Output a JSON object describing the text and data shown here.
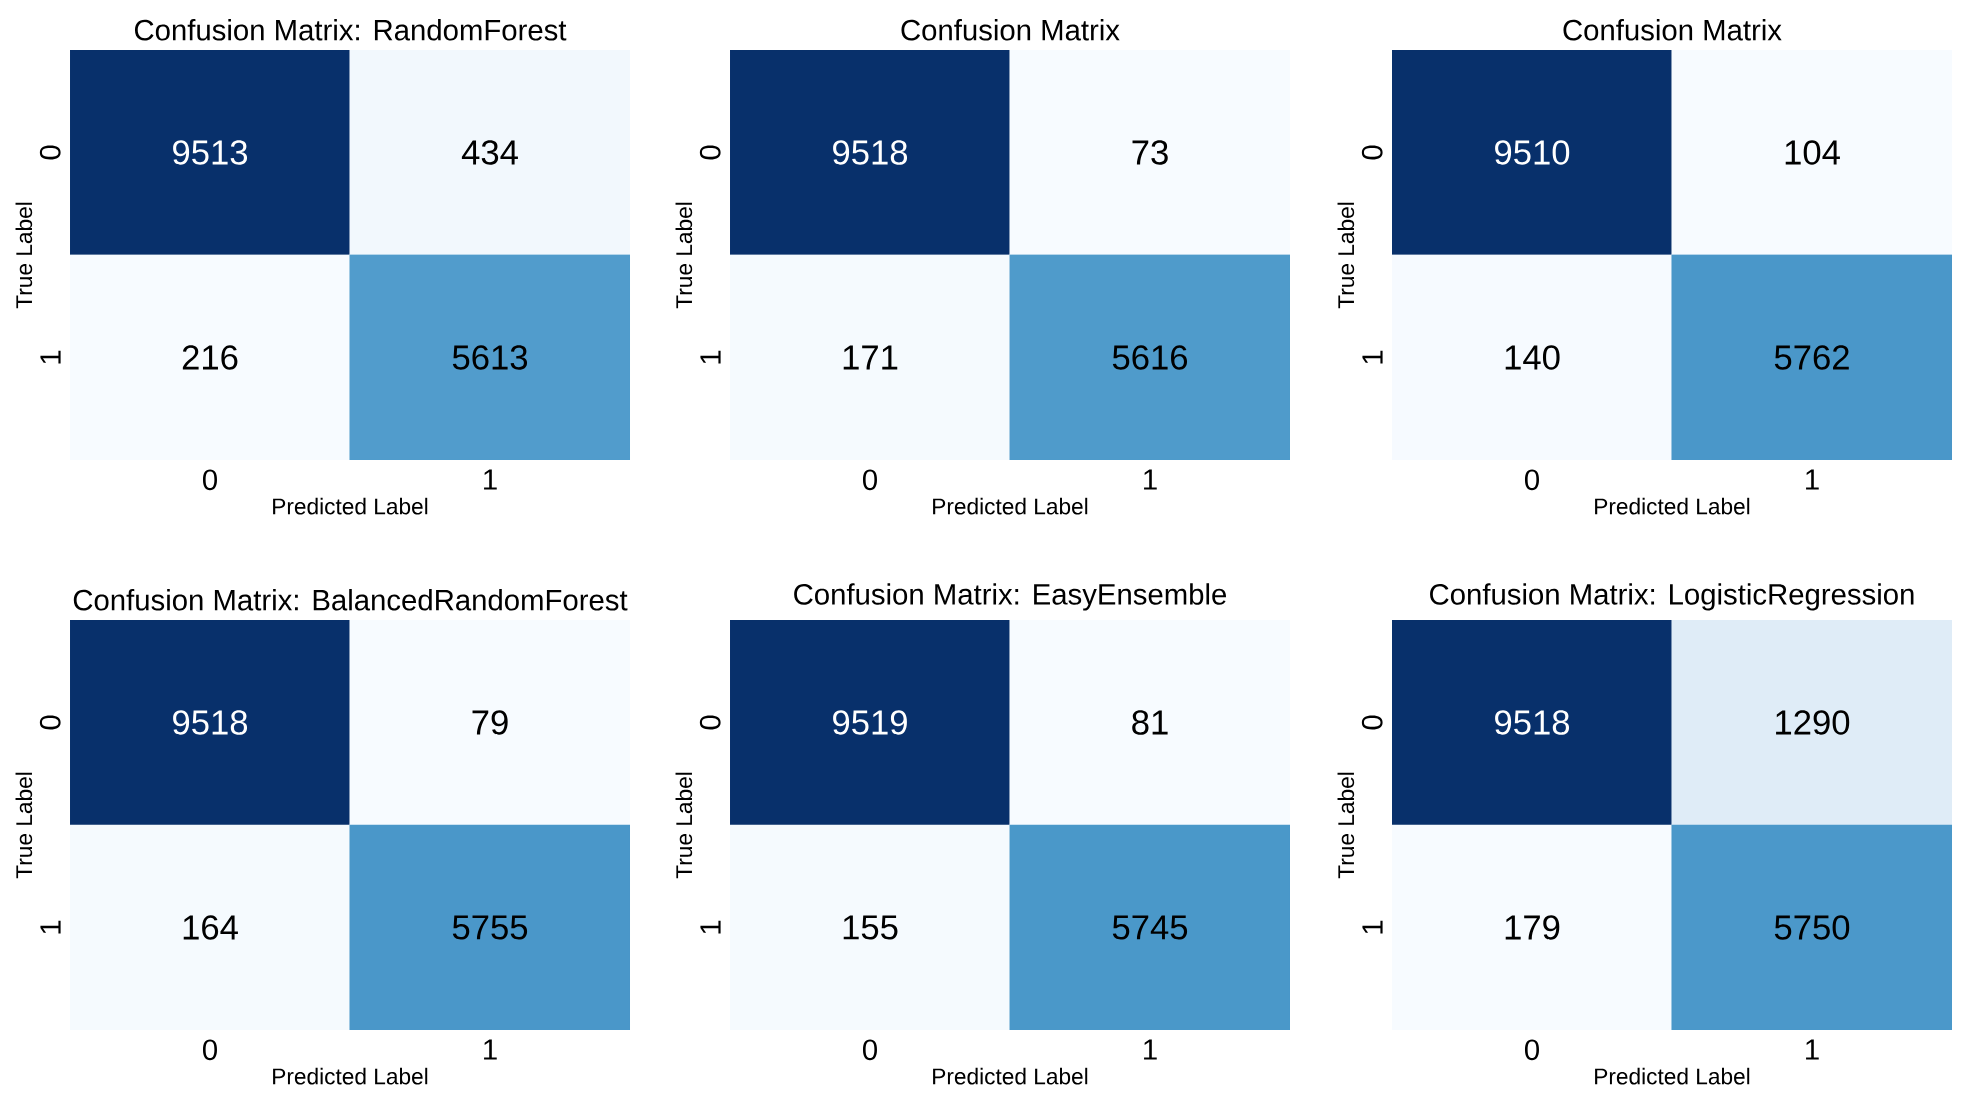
{
  "chart_data": [
    {
      "type": "heatmap",
      "title": "Confusion Matrix: RandomForest",
      "xlabel": "Predicted Label",
      "ylabel": "True Label",
      "categories": [
        "0",
        "1"
      ],
      "y_categories": [
        "0",
        "1"
      ],
      "cells": [
        [
          9513,
          434
        ],
        [
          216,
          5613
        ]
      ],
      "data_labels": true
    },
    {
      "type": "heatmap",
      "title": "Confusion Matrix",
      "xlabel": "Predicted Label",
      "ylabel": "True Label",
      "categories": [
        "0",
        "1"
      ],
      "y_categories": [
        "0",
        "1"
      ],
      "cells": [
        [
          9518,
          73
        ],
        [
          171,
          5616
        ]
      ],
      "data_labels": true
    },
    {
      "type": "heatmap",
      "title": "Confusion Matrix",
      "xlabel": "Predicted Label",
      "ylabel": "True Label",
      "categories": [
        "0",
        "1"
      ],
      "y_categories": [
        "0",
        "1"
      ],
      "cells": [
        [
          9510,
          104
        ],
        [
          140,
          5762
        ]
      ],
      "data_labels": true
    },
    {
      "type": "heatmap",
      "title": "Confusion Matrix: BalancedRandomForest",
      "xlabel": "Predicted Label",
      "ylabel": "True Label",
      "categories": [
        "0",
        "1"
      ],
      "y_categories": [
        "0",
        "1"
      ],
      "cells": [
        [
          9518,
          79
        ],
        [
          164,
          5755
        ]
      ],
      "data_labels": true
    },
    {
      "type": "heatmap",
      "title": "Confusion Matrix: EasyEnsemble",
      "xlabel": "Predicted Label",
      "ylabel": "True Label",
      "categories": [
        "0",
        "1"
      ],
      "y_categories": [
        "0",
        "1"
      ],
      "cells": [
        [
          9519,
          81
        ],
        [
          155,
          5745
        ]
      ],
      "data_labels": true
    },
    {
      "type": "heatmap",
      "title": "Confusion Matrix: LogisticRegression",
      "xlabel": "Predicted Label",
      "ylabel": "True Label",
      "categories": [
        "0",
        "1"
      ],
      "y_categories": [
        "0",
        "1"
      ],
      "cells": [
        [
          9518,
          1290
        ],
        [
          179,
          5750
        ]
      ],
      "data_labels": true
    }
  ]
}
